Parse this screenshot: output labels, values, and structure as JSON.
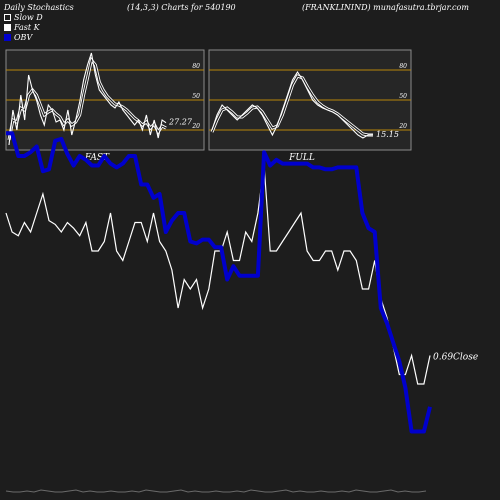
{
  "header": {
    "left": "Daily Stochastics",
    "middle": "(14,3,3) Charts for 540190",
    "right": "(FRANKLININD) munafasutra.tbrjar.com"
  },
  "legend": {
    "slow": "Slow  D",
    "fast": "Fast K",
    "obv": "OBV"
  },
  "colors": {
    "background": "#1d1d1d",
    "panel": "#262626",
    "obv": "#0000cc",
    "price": "#ffffff",
    "level_line": "#b8860b"
  },
  "chart_data": [
    {
      "type": "line",
      "panel": "FAST",
      "label": "FAST",
      "ylim": [
        0,
        100
      ],
      "level_ticks": [
        "80",
        "50",
        "20"
      ],
      "levels": [
        80,
        50,
        20
      ],
      "last_value_label": "27.27",
      "series": [
        {
          "name": "Fast K",
          "values": [
            5,
            40,
            20,
            55,
            30,
            75,
            60,
            50,
            35,
            25,
            45,
            40,
            28,
            30,
            20,
            40,
            15,
            30,
            48,
            70,
            85,
            97,
            75,
            60,
            55,
            50,
            45,
            42,
            48,
            40,
            35,
            30,
            25,
            30,
            20,
            35,
            15,
            30,
            12,
            30,
            27.27
          ]
        },
        {
          "name": "Slow  D",
          "values": [
            10,
            30,
            28,
            42,
            40,
            55,
            60,
            55,
            45,
            35,
            38,
            40,
            36,
            33,
            26,
            30,
            25,
            28,
            35,
            55,
            72,
            90,
            85,
            68,
            60,
            54,
            50,
            46,
            45,
            43,
            40,
            36,
            32,
            29,
            25,
            28,
            22,
            26,
            18,
            24,
            22
          ]
        }
      ]
    },
    {
      "type": "line",
      "panel": "FULL",
      "label": "FULL",
      "ylim": [
        0,
        100
      ],
      "level_ticks": [
        "80",
        "50",
        "20"
      ],
      "levels": [
        80,
        50,
        20
      ],
      "last_value_label": "15.15",
      "series": [
        {
          "name": "Fast K",
          "values": [
            20,
            35,
            45,
            40,
            35,
            30,
            35,
            40,
            45,
            42,
            35,
            25,
            15,
            25,
            40,
            55,
            70,
            78,
            70,
            60,
            50,
            45,
            42,
            40,
            38,
            35,
            30,
            25,
            20,
            15,
            12,
            15,
            15.15
          ]
        },
        {
          "name": "Slow  D",
          "values": [
            18,
            30,
            40,
            42,
            38,
            33,
            33,
            37,
            42,
            43,
            38,
            30,
            22,
            24,
            35,
            50,
            65,
            74,
            72,
            63,
            55,
            48,
            44,
            41,
            39,
            36,
            32,
            28,
            24,
            20,
            16,
            15,
            15
          ]
        }
      ]
    },
    {
      "type": "line",
      "panel": "price_obv",
      "last_value_label": "0.69",
      "last_value_suffix": "Close",
      "series": [
        {
          "name": "OBV",
          "values": [
            72,
            72,
            60,
            60,
            62,
            65,
            52,
            53,
            68,
            69,
            61,
            55,
            60,
            58,
            55,
            55,
            60,
            56,
            54,
            56,
            60,
            60,
            45,
            45,
            38,
            40,
            20,
            26,
            30,
            30,
            15,
            14,
            16,
            16,
            12,
            12,
            -5,
            2,
            -3,
            -3,
            -3,
            -3,
            62,
            55,
            58,
            56,
            56,
            56,
            56,
            56,
            54,
            54,
            53,
            53,
            54,
            54,
            54,
            54,
            30,
            22,
            20,
            -20,
            -28,
            -38,
            -48,
            -62,
            -85,
            -85,
            -85,
            -72
          ]
        },
        {
          "name": "Close",
          "values": [
            30,
            20,
            18,
            25,
            20,
            30,
            40,
            26,
            24,
            20,
            25,
            22,
            18,
            25,
            10,
            10,
            15,
            30,
            10,
            5,
            15,
            25,
            25,
            15,
            30,
            15,
            10,
            0,
            -20,
            -5,
            -10,
            -5,
            -20,
            -10,
            10,
            10,
            20,
            5,
            5,
            20,
            15,
            30,
            55,
            10,
            10,
            15,
            20,
            25,
            30,
            10,
            5,
            5,
            10,
            10,
            0,
            10,
            10,
            5,
            -10,
            -10,
            5,
            -15,
            -25,
            -40,
            -55,
            -55,
            -45,
            -60,
            -60,
            -45
          ]
        }
      ]
    }
  ]
}
